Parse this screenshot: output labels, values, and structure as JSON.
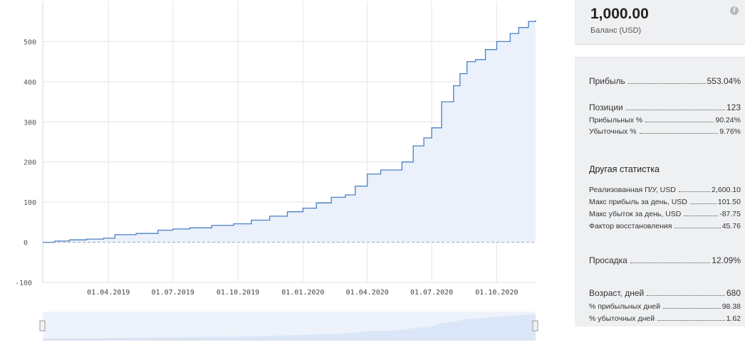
{
  "chart_data": {
    "type": "area",
    "y_ticks": [
      500,
      400,
      300,
      200,
      100,
      0,
      -100
    ],
    "ylim": [
      -100,
      600
    ],
    "x_ticks": [
      "01.04.2019",
      "01.07.2019",
      "01.10.2019",
      "01.01.2020",
      "01.04.2020",
      "01.07.2020",
      "01.10.2020"
    ],
    "x_dates": [
      "2018-12-29",
      "2019-01-15",
      "2019-02-05",
      "2019-03-01",
      "2019-03-25",
      "2019-04-10",
      "2019-05-10",
      "2019-06-10",
      "2019-07-01",
      "2019-07-25",
      "2019-08-25",
      "2019-09-25",
      "2019-10-20",
      "2019-11-15",
      "2019-12-10",
      "2020-01-01",
      "2020-01-20",
      "2020-02-10",
      "2020-03-01",
      "2020-03-15",
      "2020-04-01",
      "2020-04-20",
      "2020-05-05",
      "2020-05-20",
      "2020-06-05",
      "2020-06-20",
      "2020-07-01",
      "2020-07-15",
      "2020-08-01",
      "2020-08-10",
      "2020-08-20",
      "2020-09-01",
      "2020-09-15",
      "2020-10-01",
      "2020-10-20",
      "2020-11-01",
      "2020-11-15",
      "2020-11-25"
    ],
    "y_values": [
      0,
      3,
      6,
      8,
      10,
      19,
      22,
      30,
      33,
      36,
      42,
      46,
      55,
      65,
      76,
      85,
      98,
      112,
      118,
      140,
      170,
      180,
      180,
      200,
      240,
      260,
      285,
      350,
      390,
      420,
      450,
      455,
      480,
      500,
      520,
      535,
      550,
      553
    ],
    "baseline": 0,
    "navigator": true
  },
  "balance": {
    "value": "1,000.00",
    "label": "Баланс (USD)"
  },
  "stats": {
    "profit": {
      "label": "Прибыль",
      "value": "553.04%"
    },
    "positions": {
      "label": "Позиции",
      "value": "123"
    },
    "profitable_pct": {
      "label": "Прибыльных %",
      "value": "90.24%"
    },
    "losing_pct": {
      "label": "Убыточных %",
      "value": "9.76%"
    },
    "other_heading": "Другая статистка",
    "realized": {
      "label": "Реализованная П/У, USD",
      "value": "2,600.10"
    },
    "max_profit_day": {
      "label": "Макс прибыль за день, USD",
      "value": "101.50"
    },
    "max_loss_day": {
      "label": "Макс убыток за день, USD",
      "value": "-87.75"
    },
    "recovery_factor": {
      "label": "Фактор восстановления",
      "value": "45.76"
    },
    "drawdown": {
      "label": "Просадка",
      "value": "12.09%"
    },
    "age_days": {
      "label": "Возраст, дней",
      "value": "680"
    },
    "profitable_days": {
      "label": "% прибыльных дней",
      "value": "98.38"
    },
    "losing_days": {
      "label": "% убыточных дней",
      "value": "1.62"
    }
  },
  "colors": {
    "line": "#4a7fc4",
    "fill": "#eaf1fb",
    "grid": "#e6e6e6",
    "baseline": "#9aa6b8",
    "card": "#eef0f2"
  }
}
